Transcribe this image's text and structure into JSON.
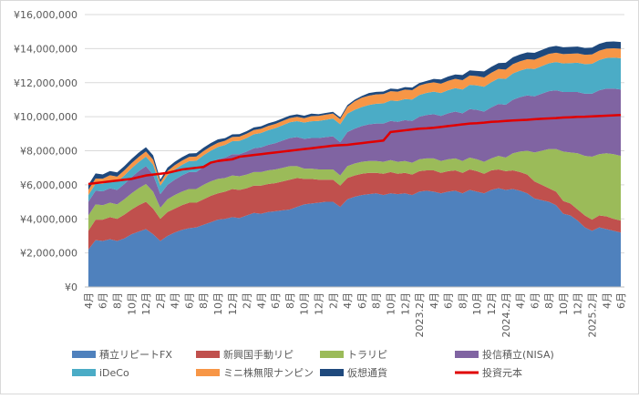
{
  "chart_data": {
    "type": "area",
    "stacked": true,
    "ylim": [
      0,
      16000000
    ],
    "y_ticks": [
      "¥0",
      "¥2,000,000",
      "¥4,000,000",
      "¥6,000,000",
      "¥8,000,000",
      "¥10,000,000",
      "¥12,000,000",
      "¥14,000,000",
      "¥16,000,000"
    ],
    "grid": true,
    "legend_position": "bottom",
    "x_labels": [
      {
        "i": 0,
        "label": "4月"
      },
      {
        "i": 2,
        "label": "6月"
      },
      {
        "i": 4,
        "label": "8月"
      },
      {
        "i": 6,
        "label": "10月"
      },
      {
        "i": 8,
        "label": "12月"
      },
      {
        "i": 10,
        "label": "2月"
      },
      {
        "i": 12,
        "label": "4月"
      },
      {
        "i": 14,
        "label": "6月"
      },
      {
        "i": 16,
        "label": "8月"
      },
      {
        "i": 18,
        "label": "10月"
      },
      {
        "i": 20,
        "label": "12月"
      },
      {
        "i": 22,
        "label": "2月"
      },
      {
        "i": 24,
        "label": "4月"
      },
      {
        "i": 26,
        "label": "6月"
      },
      {
        "i": 28,
        "label": "8月"
      },
      {
        "i": 30,
        "label": "10月"
      },
      {
        "i": 32,
        "label": "12月"
      },
      {
        "i": 34,
        "label": "2月"
      },
      {
        "i": 36,
        "label": "4月"
      },
      {
        "i": 38,
        "label": "6月"
      },
      {
        "i": 40,
        "label": "8月"
      },
      {
        "i": 42,
        "label": "10月"
      },
      {
        "i": 44,
        "label": "12月"
      },
      {
        "i": 46,
        "label": "2023.2月"
      },
      {
        "i": 48,
        "label": "4月"
      },
      {
        "i": 50,
        "label": "6月"
      },
      {
        "i": 52,
        "label": "8月"
      },
      {
        "i": 54,
        "label": "10月"
      },
      {
        "i": 56,
        "label": "12月"
      },
      {
        "i": 58,
        "label": "2024.2月"
      },
      {
        "i": 60,
        "label": "4月"
      },
      {
        "i": 62,
        "label": "6月"
      },
      {
        "i": 64,
        "label": "8月"
      },
      {
        "i": 66,
        "label": "10月"
      },
      {
        "i": 68,
        "label": "12月"
      },
      {
        "i": 70,
        "label": "2025.2月"
      },
      {
        "i": 72,
        "label": "4月"
      },
      {
        "i": 74,
        "label": "6月"
      }
    ],
    "series": [
      {
        "name": "積立リピートFX",
        "color": "#4f81bd",
        "values": [
          2200000,
          2750000,
          2700000,
          2800000,
          2700000,
          2850000,
          3100000,
          3250000,
          3400000,
          3100000,
          2700000,
          3000000,
          3200000,
          3350000,
          3450000,
          3500000,
          3650000,
          3800000,
          3950000,
          4000000,
          4100000,
          4050000,
          4200000,
          4350000,
          4300000,
          4400000,
          4450000,
          4500000,
          4550000,
          4700000,
          4850000,
          4900000,
          4950000,
          5000000,
          5000000,
          4700000,
          5150000,
          5300000,
          5400000,
          5450000,
          5500000,
          5400000,
          5500000,
          5450000,
          5500000,
          5400000,
          5600000,
          5650000,
          5600000,
          5500000,
          5600000,
          5650000,
          5500000,
          5700000,
          5600000,
          5500000,
          5700000,
          5800000,
          5700000,
          5750000,
          5650000,
          5500000,
          5200000,
          5100000,
          5000000,
          4800000,
          4300000,
          4200000,
          3900000,
          3500000,
          3300000,
          3500000,
          3400000,
          3300000,
          3200000
        ]
      },
      {
        "name": "新興国手動リピ",
        "color": "#c0504d",
        "values": [
          1100000,
          1200000,
          1250000,
          1300000,
          1300000,
          1400000,
          1450000,
          1550000,
          1600000,
          1500000,
          1300000,
          1400000,
          1400000,
          1450000,
          1500000,
          1450000,
          1500000,
          1550000,
          1550000,
          1600000,
          1650000,
          1650000,
          1600000,
          1600000,
          1650000,
          1650000,
          1650000,
          1700000,
          1750000,
          1700000,
          1500000,
          1450000,
          1350000,
          1300000,
          1300000,
          1250000,
          1250000,
          1250000,
          1250000,
          1250000,
          1200000,
          1250000,
          1250000,
          1200000,
          1200000,
          1200000,
          1200000,
          1200000,
          1250000,
          1200000,
          1200000,
          1200000,
          1200000,
          1200000,
          1200000,
          1150000,
          1150000,
          1100000,
          1100000,
          1100000,
          1100000,
          1100000,
          1000000,
          900000,
          800000,
          800000,
          750000,
          700000,
          650000,
          700000,
          650000,
          700000,
          750000,
          700000,
          700000
        ]
      },
      {
        "name": "トラリピ",
        "color": "#9bbb59",
        "values": [
          900000,
          900000,
          850000,
          850000,
          850000,
          900000,
          950000,
          1000000,
          1050000,
          1000000,
          650000,
          750000,
          800000,
          800000,
          800000,
          800000,
          850000,
          850000,
          850000,
          800000,
          800000,
          800000,
          800000,
          800000,
          800000,
          800000,
          800000,
          800000,
          800000,
          700000,
          600000,
          600000,
          600000,
          600000,
          600000,
          600000,
          700000,
          700000,
          700000,
          700000,
          700000,
          700000,
          700000,
          700000,
          700000,
          700000,
          700000,
          700000,
          700000,
          700000,
          700000,
          700000,
          700000,
          700000,
          700000,
          700000,
          700000,
          800000,
          800000,
          1000000,
          1200000,
          1400000,
          1700000,
          2000000,
          2300000,
          2500000,
          2900000,
          3000000,
          3300000,
          3500000,
          3700000,
          3600000,
          3700000,
          3800000,
          3800000
        ]
      },
      {
        "name": "投信積立(NISA)",
        "color": "#8064a2",
        "values": [
          800000,
          800000,
          820000,
          850000,
          850000,
          900000,
          950000,
          1000000,
          1050000,
          1000000,
          800000,
          850000,
          900000,
          950000,
          1000000,
          1000000,
          1050000,
          1100000,
          1150000,
          1200000,
          1250000,
          1300000,
          1350000,
          1400000,
          1450000,
          1500000,
          1550000,
          1600000,
          1650000,
          1700000,
          1750000,
          1800000,
          1850000,
          1900000,
          1950000,
          1950000,
          2000000,
          2050000,
          2100000,
          2150000,
          2200000,
          2250000,
          2300000,
          2350000,
          2400000,
          2450000,
          2500000,
          2550000,
          2600000,
          2650000,
          2700000,
          2750000,
          2800000,
          2850000,
          2900000,
          2950000,
          3000000,
          3050000,
          3100000,
          3150000,
          3200000,
          3250000,
          3300000,
          3350000,
          3400000,
          3450000,
          3500000,
          3550000,
          3600000,
          3650000,
          3700000,
          3750000,
          3800000,
          3850000,
          3900000
        ]
      },
      {
        "name": "iDeCo",
        "color": "#4bacc6",
        "values": [
          400000,
          420000,
          440000,
          460000,
          480000,
          500000,
          520000,
          540000,
          560000,
          580000,
          500000,
          560000,
          600000,
          620000,
          640000,
          660000,
          680000,
          700000,
          720000,
          740000,
          760000,
          780000,
          800000,
          820000,
          840000,
          860000,
          880000,
          900000,
          920000,
          940000,
          960000,
          980000,
          1000000,
          1020000,
          1040000,
          1060000,
          1080000,
          1100000,
          1120000,
          1140000,
          1160000,
          1180000,
          1200000,
          1220000,
          1240000,
          1260000,
          1280000,
          1300000,
          1320000,
          1340000,
          1360000,
          1380000,
          1400000,
          1420000,
          1440000,
          1460000,
          1480000,
          1500000,
          1520000,
          1540000,
          1560000,
          1580000,
          1600000,
          1620000,
          1640000,
          1660000,
          1680000,
          1700000,
          1720000,
          1740000,
          1760000,
          1780000,
          1800000,
          1820000,
          1840000
        ]
      },
      {
        "name": "ミニ株無限ナンピン",
        "color": "#f79646",
        "values": [
          300000,
          300000,
          300000,
          300000,
          300000,
          300000,
          300000,
          300000,
          300000,
          300000,
          200000,
          250000,
          250000,
          250000,
          250000,
          250000,
          250000,
          250000,
          250000,
          250000,
          250000,
          250000,
          250000,
          250000,
          250000,
          250000,
          250000,
          250000,
          250000,
          250000,
          250000,
          300000,
          300000,
          300000,
          300000,
          300000,
          400000,
          500000,
          550000,
          550000,
          550000,
          550000,
          550000,
          550000,
          550000,
          550000,
          550000,
          550000,
          550000,
          550000,
          550000,
          550000,
          550000,
          550000,
          550000,
          550000,
          550000,
          550000,
          550000,
          550000,
          550000,
          550000,
          550000,
          550000,
          550000,
          550000,
          550000,
          550000,
          550000,
          550000,
          550000,
          550000,
          550000,
          550000,
          550000
        ]
      },
      {
        "name": "仮想通貨",
        "color": "#1f497d",
        "values": [
          300000,
          300000,
          250000,
          250000,
          250000,
          250000,
          250000,
          250000,
          250000,
          250000,
          150000,
          200000,
          200000,
          200000,
          200000,
          200000,
          200000,
          200000,
          200000,
          150000,
          150000,
          150000,
          150000,
          150000,
          150000,
          150000,
          150000,
          150000,
          150000,
          150000,
          150000,
          150000,
          100000,
          100000,
          100000,
          100000,
          100000,
          100000,
          100000,
          150000,
          150000,
          150000,
          150000,
          150000,
          150000,
          150000,
          150000,
          150000,
          200000,
          250000,
          250000,
          250000,
          300000,
          300000,
          300000,
          350000,
          350000,
          350000,
          400000,
          400000,
          400000,
          400000,
          400000,
          400000,
          400000,
          400000,
          400000,
          400000,
          400000,
          400000,
          400000,
          400000,
          400000,
          400000,
          400000
        ]
      }
    ],
    "principal": {
      "name": "投資元本",
      "color": "#e00000",
      "values": [
        6050000,
        6100000,
        6150000,
        6200000,
        6250000,
        6300000,
        6350000,
        6450000,
        6550000,
        6600000,
        6650000,
        6700000,
        6800000,
        6900000,
        6950000,
        7000000,
        7050000,
        7300000,
        7400000,
        7450000,
        7500000,
        7650000,
        7700000,
        7750000,
        7800000,
        7850000,
        7900000,
        7950000,
        8000000,
        8050000,
        8100000,
        8150000,
        8200000,
        8250000,
        8300000,
        8330000,
        8350000,
        8400000,
        8450000,
        8500000,
        8550000,
        8600000,
        9100000,
        9150000,
        9200000,
        9250000,
        9300000,
        9320000,
        9350000,
        9400000,
        9450000,
        9500000,
        9550000,
        9600000,
        9620000,
        9650000,
        9700000,
        9720000,
        9750000,
        9780000,
        9800000,
        9820000,
        9850000,
        9880000,
        9900000,
        9920000,
        9950000,
        9970000,
        9990000,
        10000000,
        10020000,
        10040000,
        10060000,
        10080000,
        10100000
      ]
    },
    "legend": [
      "積立リピートFX",
      "新興国手動リピ",
      "トラリピ",
      "投信積立(NISA)",
      "iDeCo",
      "ミニ株無限ナンピン",
      "仮想通貨",
      "投資元本"
    ]
  }
}
